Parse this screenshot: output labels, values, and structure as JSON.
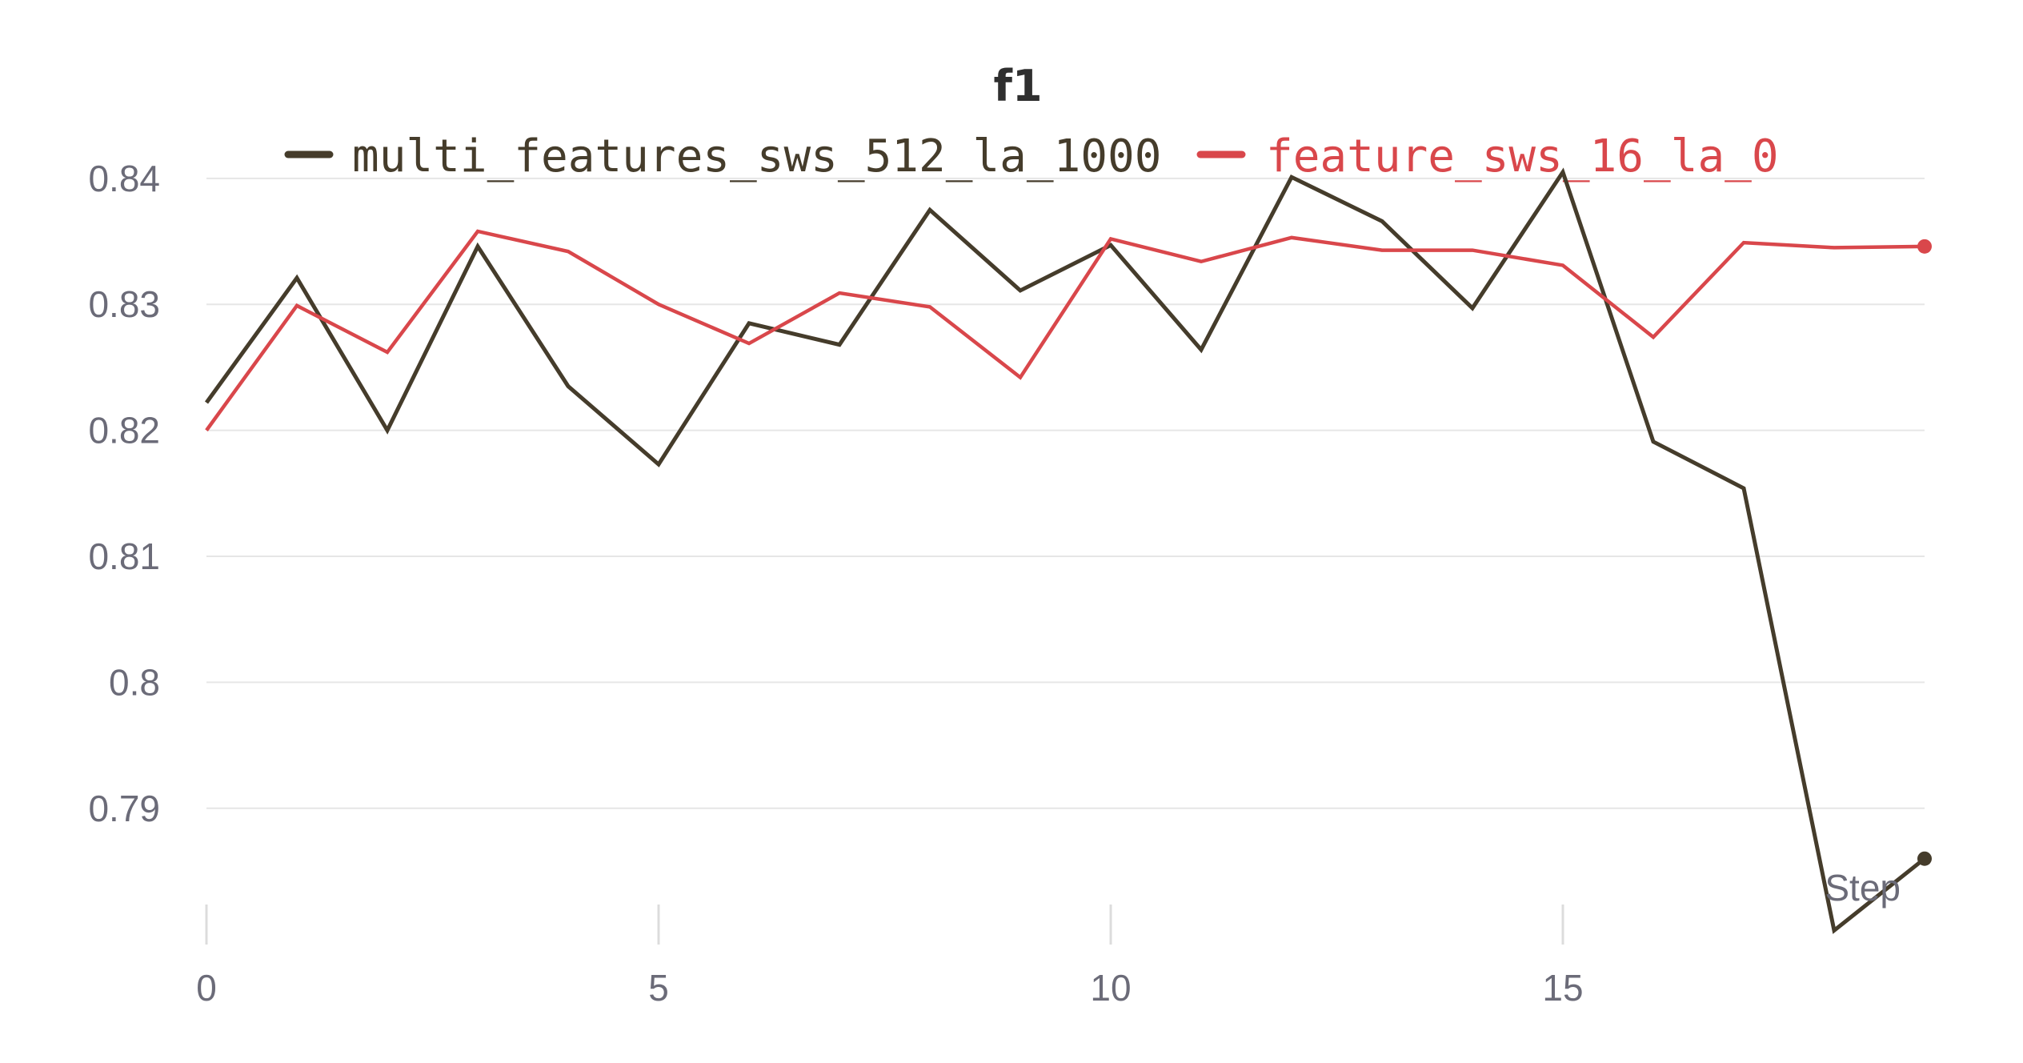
{
  "chart_data": {
    "type": "line",
    "title": "f1",
    "xlabel": "Step",
    "ylabel": "",
    "xlim": [
      0,
      19
    ],
    "ylim": [
      0.7795,
      0.8405
    ],
    "x_ticks": [
      0,
      5,
      10,
      15
    ],
    "y_ticks": [
      0.79,
      0.8,
      0.81,
      0.82,
      0.83,
      0.84
    ],
    "y_tick_labels": [
      "0.79",
      "0.8",
      "0.81",
      "0.82",
      "0.83",
      "0.84"
    ],
    "grid": true,
    "legend_position": "top",
    "x": [
      0,
      1,
      2,
      3,
      4,
      5,
      6,
      7,
      8,
      9,
      10,
      11,
      12,
      13,
      14,
      15,
      16,
      17,
      18,
      19
    ],
    "series": [
      {
        "name": "multi_features_sws_512_la_1000",
        "color": "#453c2b",
        "values": [
          0.8222,
          0.8321,
          0.82,
          0.8346,
          0.8235,
          0.8173,
          0.8285,
          0.8268,
          0.8375,
          0.8311,
          0.8347,
          0.8264,
          0.8401,
          0.8366,
          0.8297,
          0.8405,
          0.8191,
          0.8154,
          0.7803,
          0.786
        ]
      },
      {
        "name": "feature_sws_16_la_0",
        "color": "#d9474b",
        "values": [
          0.82,
          0.8299,
          0.8262,
          0.8358,
          0.8342,
          0.83,
          0.8269,
          0.8309,
          0.8298,
          0.8242,
          0.8352,
          0.8334,
          0.8353,
          0.8343,
          0.8343,
          0.8331,
          0.8274,
          0.8349,
          0.8345,
          0.8346
        ]
      }
    ]
  }
}
